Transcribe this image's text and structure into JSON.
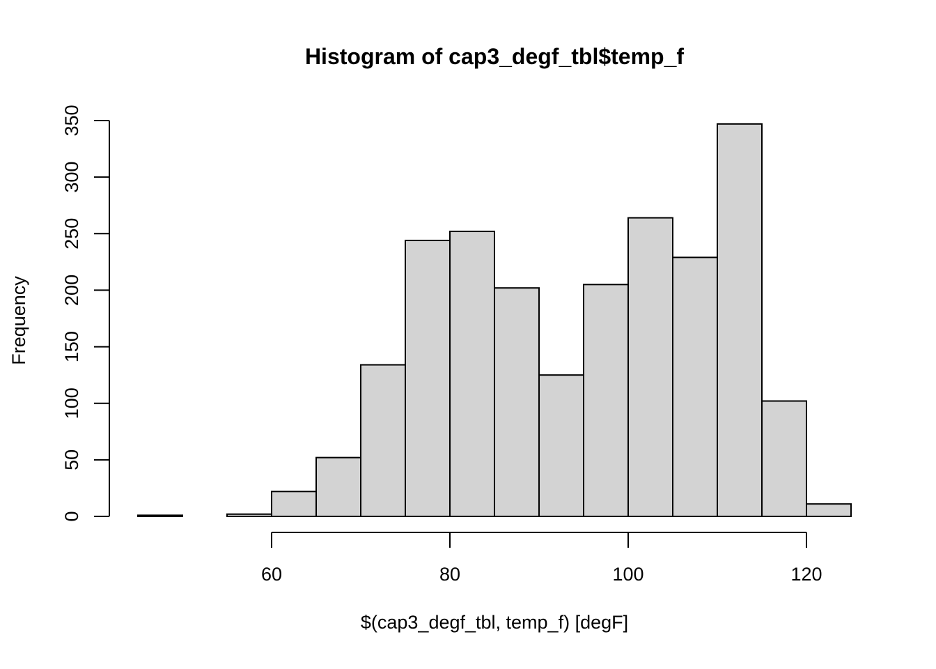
{
  "chart_data": {
    "type": "bar",
    "subtype": "histogram",
    "title": "Histogram of cap3_degf_tbl$temp_f",
    "xlabel": "$(cap3_degf_tbl, temp_f) [degF]",
    "ylabel": "Frequency",
    "bin_width": 5,
    "bins": [
      {
        "x0": 45,
        "x1": 50,
        "count": 1
      },
      {
        "x0": 50,
        "x1": 55,
        "count": 0
      },
      {
        "x0": 55,
        "x1": 60,
        "count": 2
      },
      {
        "x0": 60,
        "x1": 65,
        "count": 22
      },
      {
        "x0": 65,
        "x1": 70,
        "count": 52
      },
      {
        "x0": 70,
        "x1": 75,
        "count": 134
      },
      {
        "x0": 75,
        "x1": 80,
        "count": 244
      },
      {
        "x0": 80,
        "x1": 85,
        "count": 252
      },
      {
        "x0": 85,
        "x1": 90,
        "count": 202
      },
      {
        "x0": 90,
        "x1": 95,
        "count": 125
      },
      {
        "x0": 95,
        "x1": 100,
        "count": 205
      },
      {
        "x0": 100,
        "x1": 105,
        "count": 264
      },
      {
        "x0": 105,
        "x1": 110,
        "count": 229
      },
      {
        "x0": 110,
        "x1": 115,
        "count": 347
      },
      {
        "x0": 115,
        "x1": 120,
        "count": 102
      },
      {
        "x0": 120,
        "x1": 125,
        "count": 11
      }
    ],
    "x_ticks": [
      60,
      80,
      100,
      120
    ],
    "y_ticks": [
      0,
      50,
      100,
      150,
      200,
      250,
      300,
      350
    ],
    "xlim": [
      45,
      125
    ],
    "ylim": [
      0,
      350
    ],
    "grid": false,
    "bar_color": "#d3d3d3",
    "edge_color": "#000000"
  }
}
